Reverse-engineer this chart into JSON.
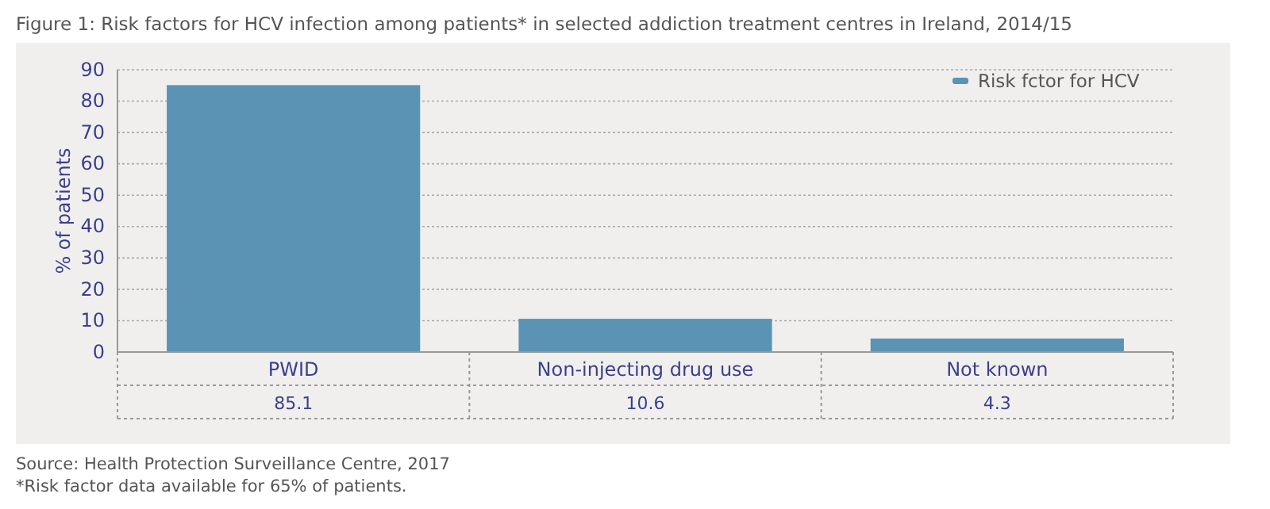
{
  "chart_data": {
    "type": "bar",
    "title": "Figure 1: Risk factors for HCV infection among patients* in selected addiction treatment centres in Ireland, 2014/15",
    "ylabel": "% of patients",
    "categories": [
      "PWID",
      "Non-injecting drug use",
      "Not known"
    ],
    "series": [
      {
        "name": "Risk fctor for HCV",
        "color": "#5b93b4",
        "values": [
          85.1,
          10.6,
          4.3
        ]
      }
    ],
    "ylim": [
      0,
      90
    ],
    "yticks": [
      0,
      10,
      20,
      30,
      40,
      50,
      60,
      70,
      80,
      90
    ],
    "grid": "y",
    "legend": "top right",
    "data_labels": true,
    "annotations": [
      "Source: Health Protection Surveillance Centre, 2017",
      "*Risk factor data available for 65% of patients."
    ]
  }
}
